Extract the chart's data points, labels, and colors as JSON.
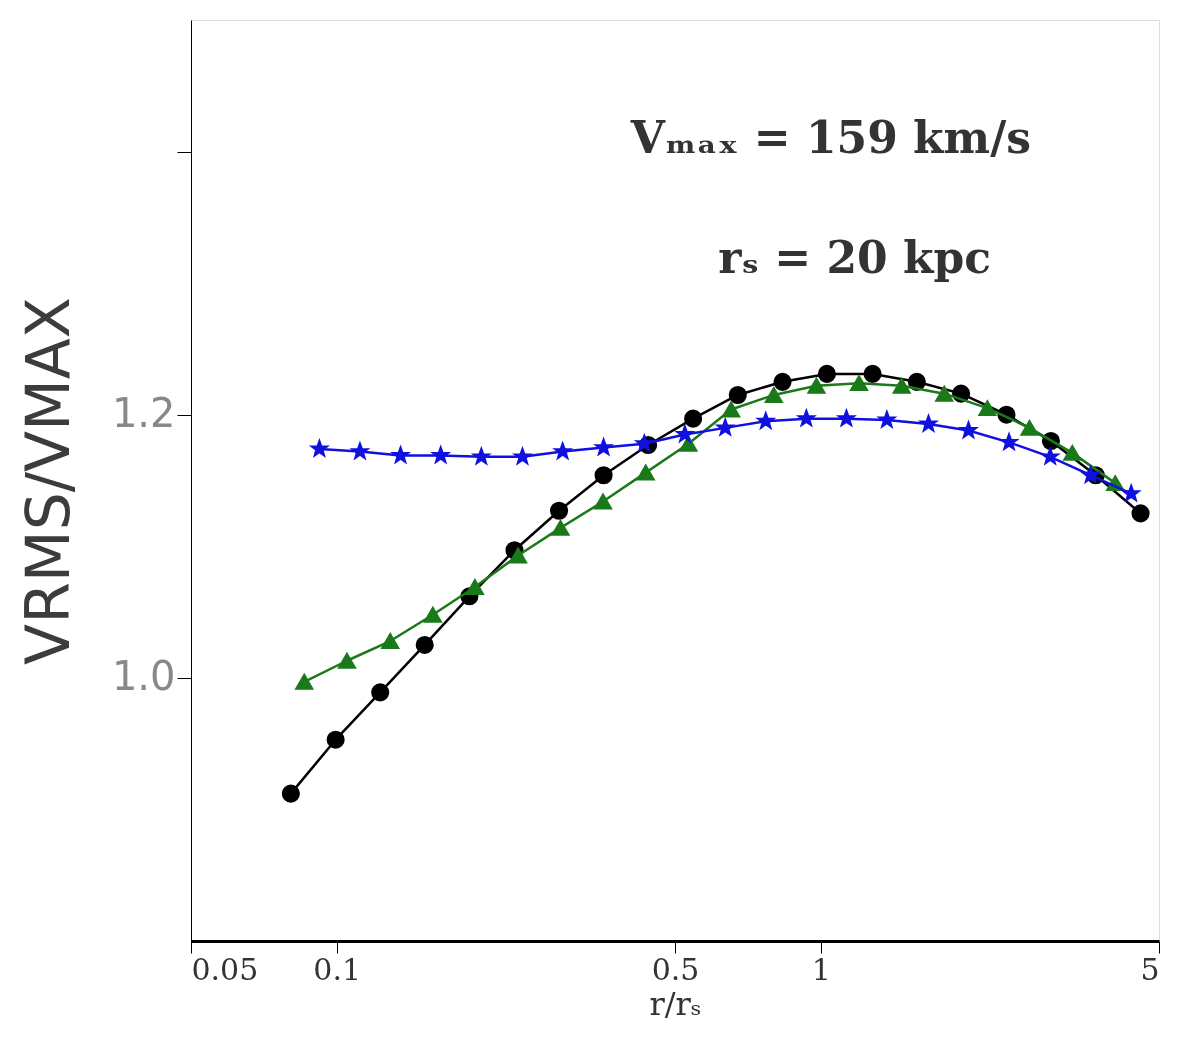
{
  "chart_data": {
    "type": "line",
    "xlabel": "r/rₛ",
    "ylabel": "VRMS/VMAX",
    "annotations": [
      "Vₘₐₓ  =  159 km/s",
      "rₛ  =  20 kpc"
    ],
    "log": "x",
    "line_style": "solid",
    "xlim": [
      0.05,
      5
    ],
    "xticks": [
      0.05,
      0.1,
      0.5,
      1,
      5
    ],
    "ylim": [
      0.8,
      1.5
    ],
    "yticks": [
      {
        "value": 1.0,
        "label": "1.0"
      },
      {
        "value": 1.2,
        "label": "1.2"
      },
      {
        "value": 1.4,
        "label": null
      }
    ],
    "series": [
      {
        "color": "#000000",
        "marker": "circle",
        "x": [
          0.0804,
          0.0995,
          0.123,
          0.152,
          0.188,
          0.233,
          0.288,
          0.356,
          0.44,
          0.545,
          0.674,
          0.834,
          1.03,
          1.28,
          1.58,
          1.95,
          2.42,
          2.99,
          3.7,
          4.58
        ],
        "values": [
          0.912,
          0.953,
          0.989,
          1.025,
          1.062,
          1.097,
          1.127,
          1.154,
          1.177,
          1.197,
          1.215,
          1.225,
          1.231,
          1.231,
          1.225,
          1.216,
          1.2,
          1.18,
          1.154,
          1.125
        ]
      },
      {
        "color": "#1a7a1a",
        "marker": "triangle",
        "x": [
          0.0857,
          0.105,
          0.129,
          0.158,
          0.193,
          0.237,
          0.29,
          0.355,
          0.435,
          0.533,
          0.653,
          0.8,
          0.98,
          1.2,
          1.47,
          1.8,
          2.21,
          2.7,
          3.31,
          4.06
        ],
        "values": [
          0.997,
          1.013,
          1.028,
          1.048,
          1.069,
          1.093,
          1.114,
          1.134,
          1.156,
          1.178,
          1.204,
          1.215,
          1.222,
          1.224,
          1.222,
          1.216,
          1.205,
          1.19,
          1.171,
          1.148
        ]
      },
      {
        "color": "#1010e0",
        "marker": "star",
        "x": [
          0.0921,
          0.1117,
          0.1355,
          0.164,
          0.199,
          0.242,
          0.293,
          0.356,
          0.432,
          0.524,
          0.635,
          0.77,
          0.934,
          1.13,
          1.37,
          1.67,
          2.02,
          2.45,
          2.98,
          3.61,
          4.38
        ],
        "values": [
          1.174,
          1.172,
          1.169,
          1.169,
          1.168,
          1.168,
          1.172,
          1.175,
          1.178,
          1.185,
          1.19,
          1.195,
          1.197,
          1.197,
          1.196,
          1.193,
          1.188,
          1.179,
          1.168,
          1.154,
          1.14
        ]
      }
    ]
  }
}
